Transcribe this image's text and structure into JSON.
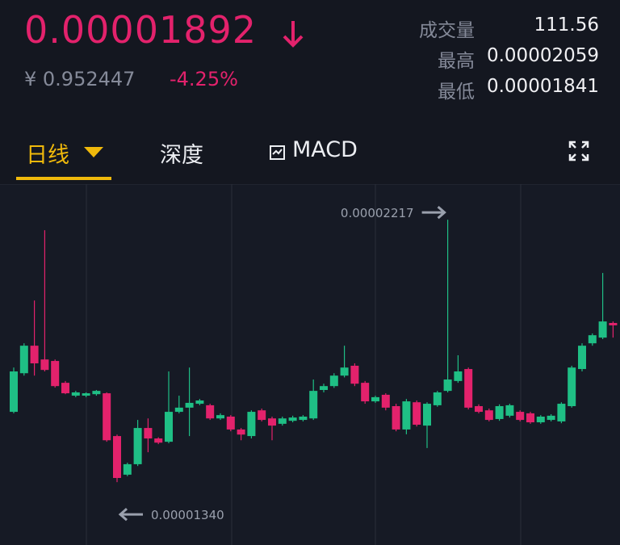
{
  "header": {
    "price": "0.00001892",
    "cny": "¥ 0.952447",
    "change": "-4.25%",
    "stats": [
      {
        "label": "成交量",
        "value": "111.56"
      },
      {
        "label": "最高",
        "value": "0.00002059"
      },
      {
        "label": "最低",
        "value": "0.00001841"
      }
    ]
  },
  "tabs": [
    "日线",
    "深度",
    "MACD"
  ],
  "chart_data": {
    "type": "candlestick",
    "up_color": "#1fbf85",
    "down_color": "#e3226c",
    "ylim": [
      1.13e-05,
      2.336e-05
    ],
    "open": [
      1.575e-05,
      1.704e-05,
      1.796e-05,
      1.75e-05,
      1.745e-05,
      1.672e-05,
      1.629e-05,
      1.629e-05,
      1.634e-05,
      1.637e-05,
      1.494e-05,
      1.365e-05,
      1.4e-05,
      1.521e-05,
      1.486e-05,
      1.475e-05,
      1.575e-05,
      1.589e-05,
      1.602e-05,
      1.597e-05,
      1.553e-05,
      1.559e-05,
      1.516e-05,
      1.494e-05,
      1.58e-05,
      1.553e-05,
      1.535e-05,
      1.545e-05,
      1.548e-05,
      1.553e-05,
      1.648e-05,
      1.661e-05,
      1.696e-05,
      1.729e-05,
      1.672e-05,
      1.61e-05,
      1.632e-05,
      1.594e-05,
      1.516e-05,
      1.607e-05,
      1.529e-05,
      1.597e-05,
      1.645e-05,
      1.678e-05,
      1.718e-05,
      1.594e-05,
      1.58e-05,
      1.551e-05,
      1.562e-05,
      1.575e-05,
      1.57e-05,
      1.54e-05,
      1.548e-05,
      1.543e-05,
      1.594e-05,
      1.718e-05,
      1.804e-05,
      1.823e-05,
      1.872e-05
    ],
    "high": [
      1.723e-05,
      1.804e-05,
      1.947e-05,
      2.182e-05,
      1.75e-05,
      1.678e-05,
      1.645e-05,
      1.64e-05,
      1.648e-05,
      1.64e-05,
      1.499e-05,
      1.405e-05,
      1.548e-05,
      1.553e-05,
      1.49e-05,
      1.71e-05,
      1.629e-05,
      1.723e-05,
      1.618e-05,
      1.602e-05,
      1.57e-05,
      1.564e-05,
      1.521e-05,
      1.58e-05,
      1.586e-05,
      1.559e-05,
      1.559e-05,
      1.562e-05,
      1.564e-05,
      1.683e-05,
      1.669e-05,
      1.704e-05,
      1.796e-05,
      1.737e-05,
      1.678e-05,
      1.629e-05,
      1.637e-05,
      1.602e-05,
      1.618e-05,
      1.613e-05,
      1.607e-05,
      1.645e-05,
      2.217e-05,
      1.764e-05,
      1.723e-05,
      1.6e-05,
      1.586e-05,
      1.6e-05,
      1.602e-05,
      1.58e-05,
      1.575e-05,
      1.564e-05,
      1.567e-05,
      1.607e-05,
      1.729e-05,
      1.804e-05,
      1.837e-05,
      2.039e-05,
      1.877e-05
    ],
    "low": [
      1.57e-05,
      1.696e-05,
      1.696e-05,
      1.71e-05,
      1.656e-05,
      1.634e-05,
      1.624e-05,
      1.624e-05,
      1.629e-05,
      1.475e-05,
      1.34e-05,
      1.36e-05,
      1.394e-05,
      1.44e-05,
      1.467e-05,
      1.47e-05,
      1.57e-05,
      1.494e-05,
      1.597e-05,
      1.548e-05,
      1.548e-05,
      1.51e-05,
      1.48e-05,
      1.486e-05,
      1.543e-05,
      1.48e-05,
      1.529e-05,
      1.54e-05,
      1.543e-05,
      1.548e-05,
      1.64e-05,
      1.655e-05,
      1.69e-05,
      1.661e-05,
      1.602e-05,
      1.605e-05,
      1.58e-05,
      1.51e-05,
      1.5e-05,
      1.526e-05,
      1.454e-05,
      1.592e-05,
      1.64e-05,
      1.672e-05,
      1.583e-05,
      1.57e-05,
      1.543e-05,
      1.545e-05,
      1.556e-05,
      1.543e-05,
      1.535e-05,
      1.535e-05,
      1.543e-05,
      1.537e-05,
      1.589e-05,
      1.71e-05,
      1.796e-05,
      1.818e-05,
      1.823e-05
    ],
    "close": [
      1.71e-05,
      1.796e-05,
      1.737e-05,
      1.715e-05,
      1.661e-05,
      1.637e-05,
      1.64e-05,
      1.637e-05,
      1.645e-05,
      1.48e-05,
      1.354e-05,
      1.4e-05,
      1.521e-05,
      1.486e-05,
      1.472e-05,
      1.575e-05,
      1.589e-05,
      1.605e-05,
      1.613e-05,
      1.553e-05,
      1.564e-05,
      1.516e-05,
      1.499e-05,
      1.575e-05,
      1.548e-05,
      1.529e-05,
      1.553e-05,
      1.556e-05,
      1.559e-05,
      1.645e-05,
      1.661e-05,
      1.696e-05,
      1.723e-05,
      1.669e-05,
      1.61e-05,
      1.624e-05,
      1.589e-05,
      1.516e-05,
      1.61e-05,
      1.532e-05,
      1.602e-05,
      1.64e-05,
      1.683e-05,
      1.71e-05,
      1.589e-05,
      1.575e-05,
      1.548e-05,
      1.594e-05,
      1.597e-05,
      1.548e-05,
      1.54e-05,
      1.559e-05,
      1.562e-05,
      1.602e-05,
      1.723e-05,
      1.796e-05,
      1.831e-05,
      1.877e-05,
      1.864e-05
    ],
    "annotations": [
      {
        "value": 2.217e-05,
        "label": "0.00002217"
      },
      {
        "value": 1.34e-05,
        "label": "0.00001340"
      }
    ]
  }
}
